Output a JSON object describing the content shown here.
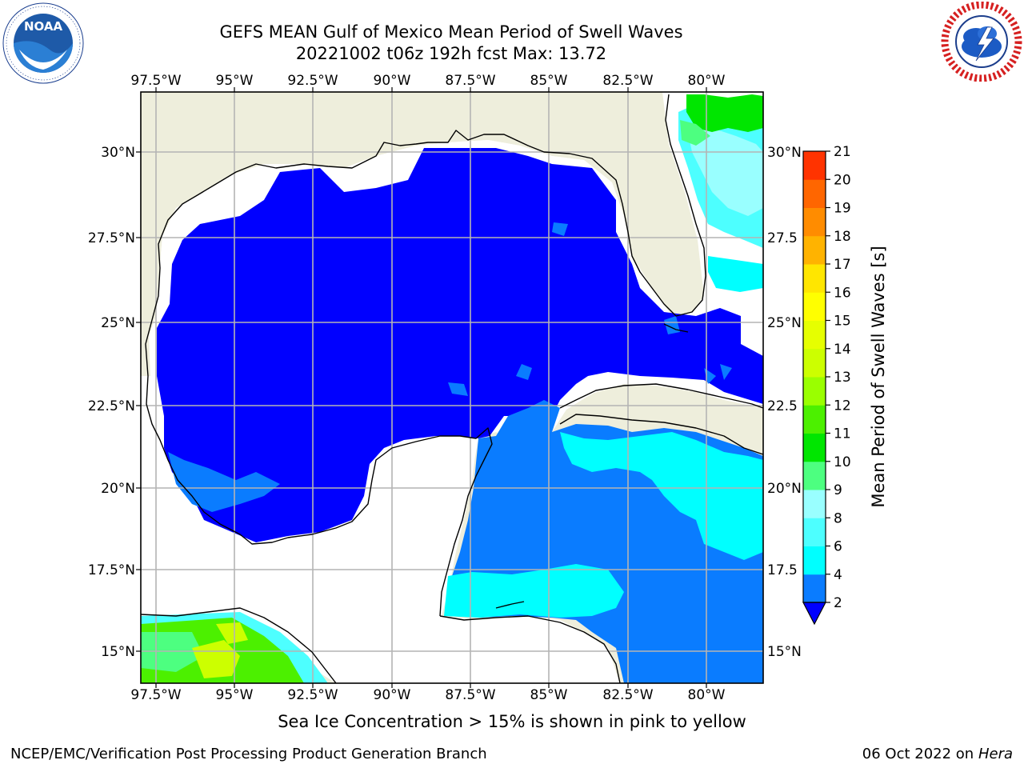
{
  "header": {
    "title_line1": "GEFS MEAN Gulf of Mexico Mean Period of Swell Waves",
    "title_line2": "20221002 t06z 192h fcst   Max: 13.72"
  },
  "logos": {
    "left": {
      "icon": "noaa-logo-icon",
      "text": "NOAA"
    },
    "right": {
      "icon": "nws-logo-icon"
    }
  },
  "map": {
    "lon_labels": [
      "97.5°W",
      "95°W",
      "92.5°W",
      "90°W",
      "87.5°W",
      "85°W",
      "82.5°W",
      "80°W"
    ],
    "lat_labels": [
      "30°N",
      "27.5°N",
      "25°N",
      "22.5°N",
      "20°N",
      "17.5°N",
      "15°N"
    ],
    "lat_labels_right": [
      "30°N",
      "27.5",
      "25°N",
      "22.5",
      "20°N",
      "17.5",
      "15°N"
    ],
    "colors": {
      "land": "#eeeedc",
      "grid": "#b4b4b4",
      "coast": "#000000"
    }
  },
  "colorbar": {
    "title": "Mean Period of Swell Waves [s]",
    "ticks": [
      "2",
      "4",
      "6",
      "8",
      "9",
      "10",
      "11",
      "12",
      "13",
      "14",
      "15",
      "16",
      "17",
      "18",
      "19",
      "20",
      "21"
    ],
    "colors": [
      "#0a7cff",
      "#00ffff",
      "#4dffff",
      "#99ffff",
      "#4dff80",
      "#00e600",
      "#4cf000",
      "#9aff00",
      "#ccff00",
      "#e6ff00",
      "#ffff00",
      "#ffe600",
      "#ffb300",
      "#ff8c00",
      "#ff6600",
      "#ff3300",
      "#ff0000"
    ],
    "under_color": "#0000ff"
  },
  "footer": {
    "ice_note": "Sea Ice Concentration > 15% is shown in pink to yellow",
    "credit": "NCEP/EMC/Verification Post Processing Product Generation Branch",
    "date": "06 Oct 2022 on",
    "host": "Hera"
  }
}
